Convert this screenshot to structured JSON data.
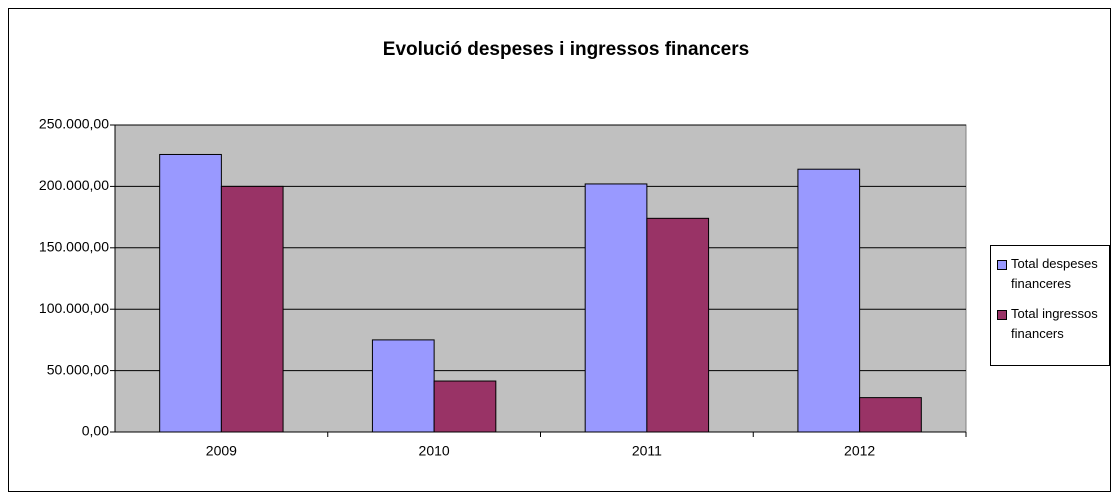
{
  "chart_data": {
    "type": "bar",
    "title": "Evolució despeses i ingressos financers",
    "categories": [
      "2009",
      "2010",
      "2011",
      "2012"
    ],
    "series": [
      {
        "name": "Total despeses financeres",
        "color": "#9999ff",
        "values": [
          226000,
          75000,
          202000,
          214000
        ]
      },
      {
        "name": "Total ingressos financers",
        "color": "#993366",
        "values": [
          200000,
          41500,
          174000,
          28000
        ]
      }
    ],
    "ylim": [
      0,
      250000
    ],
    "yticks": [
      {
        "value": 0,
        "label": "0,00"
      },
      {
        "value": 50000,
        "label": "50.000,00"
      },
      {
        "value": 100000,
        "label": "100.000,00"
      },
      {
        "value": 150000,
        "label": "150.000,00"
      },
      {
        "value": 200000,
        "label": "200.000,00"
      },
      {
        "value": 250000,
        "label": "250.000,00"
      }
    ],
    "grid": true,
    "legend": "right"
  }
}
